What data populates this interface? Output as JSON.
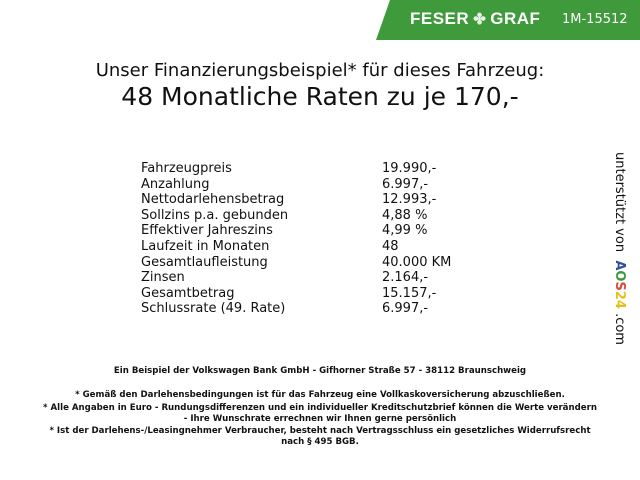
{
  "header": {
    "brand_left": "FESER",
    "brand_right": "GRAF",
    "code": "1M-15512",
    "accent": "#3f9a3c"
  },
  "title": {
    "line1": "Unser Finanzierungsbeispiel* für dieses Fahrzeug:",
    "line2": "48 Monatliche Raten zu je 170,-"
  },
  "rows": [
    {
      "label": "Fahrzeugpreis",
      "value": "19.990,-"
    },
    {
      "label": "Anzahlung",
      "value": "6.997,-"
    },
    {
      "label": "Nettodarlehensbetrag",
      "value": "12.993,-"
    },
    {
      "label": "Sollzins p.a. gebunden",
      "value": "4,88 %"
    },
    {
      "label": "Effektiver Jahreszins",
      "value": "4,99 %"
    },
    {
      "label": "Laufzeit in Monaten",
      "value": "48"
    },
    {
      "label": "Gesamtlaufleistung",
      "value": "40.000 KM"
    },
    {
      "label": "Zinsen",
      "value": "2.164,-"
    },
    {
      "label": "Gesamtbetrag",
      "value": "15.157,-"
    },
    {
      "label": "Schlussrate (49. Rate)",
      "value": "6.997,-"
    }
  ],
  "side": {
    "prefix": "unterstützt von",
    "logo": [
      "A",
      "O",
      "S",
      "2",
      "4"
    ],
    "suffix": ".com"
  },
  "footer": {
    "bank": "Ein Beispiel der Volkswagen Bank GmbH - Gifhorner Straße 57 - 38112 Braunschweig",
    "note1": "* Gemäß den Darlehensbedingungen ist für das Fahrzeug eine Vollkaskoversicherung abzuschließen.",
    "note2a": "* Alle Angaben in Euro - Rundungsdifferenzen und ein individueller Kreditschutzbrief können die Werte verändern",
    "note2b": "- Ihre Wunschrate errechnen wir Ihnen gerne persönlich",
    "note3a": "* Ist der Darlehens-/Leasingnehmer Verbraucher, besteht nach Vertragsschluss ein gesetzliches Widerrufsrecht",
    "note3b": "nach § 495 BGB."
  }
}
